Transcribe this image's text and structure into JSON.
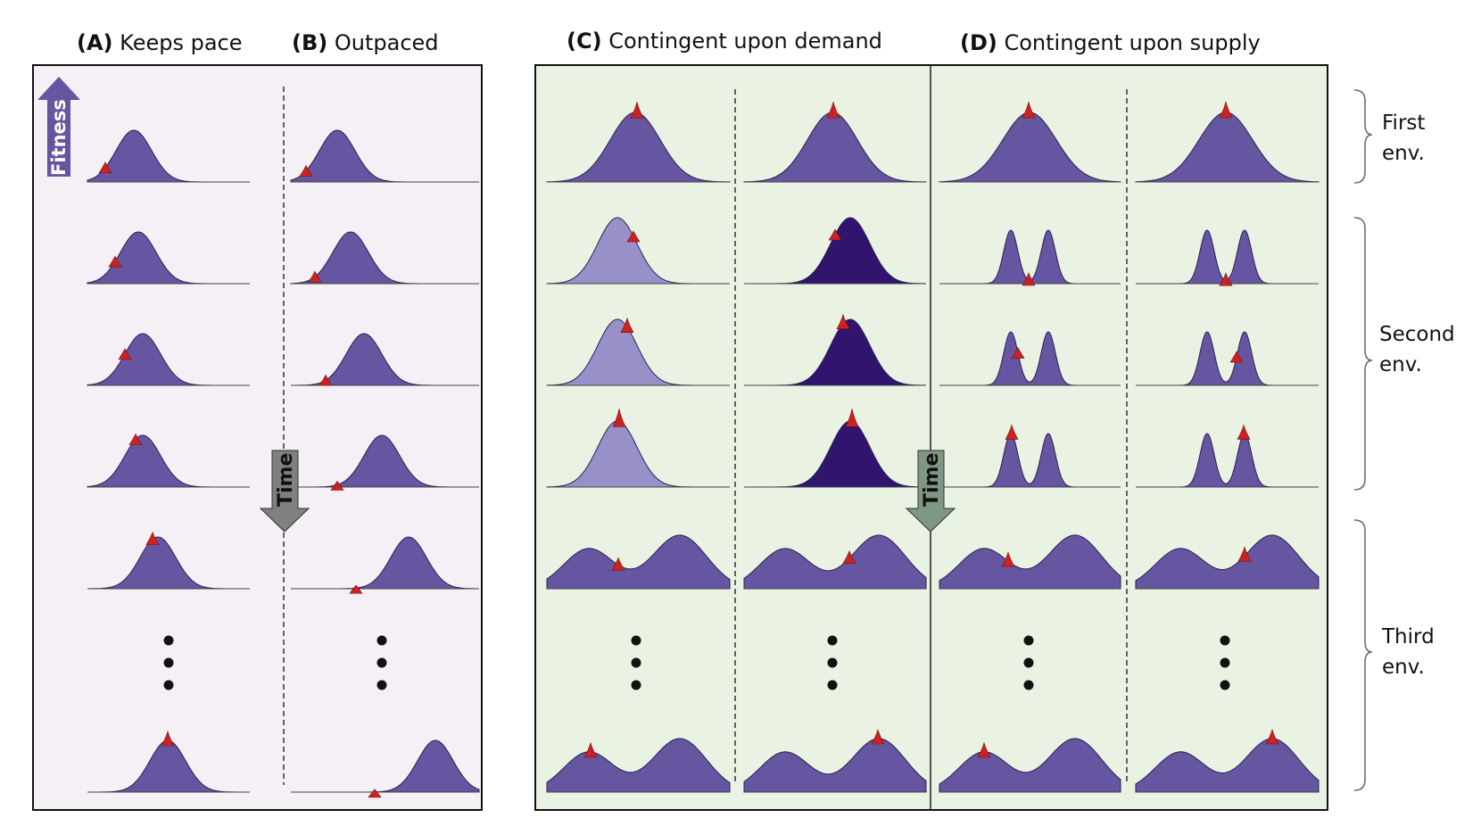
{
  "titles": {
    "a_letter": "(A)",
    "a_text": " Keeps pace",
    "b_letter": "(B)",
    "b_text": " Outpaced",
    "c_letter": "(C)",
    "c_text": " Contingent upon demand",
    "d_letter": "(D)",
    "d_text": " Contingent upon supply"
  },
  "arrows": {
    "fitness": "Fitness",
    "time_left": "Time",
    "time_right": "Time"
  },
  "environments": [
    {
      "line1": "First",
      "line2": "env."
    },
    {
      "line1": "Second",
      "line2": "env."
    },
    {
      "line1": "Third",
      "line2": "env."
    }
  ],
  "colors": {
    "panel_left_bg": "#f5eff6",
    "panel_right_bg": "#eaf2e4",
    "population": "#6655a0",
    "population_light": "#9891c9",
    "population_dark": "#30146d",
    "mutant": "#cc2222",
    "time_arrow_left": "#808080",
    "time_arrow_right": "#7f9784",
    "fitness_arrow": "#6655a0"
  }
}
